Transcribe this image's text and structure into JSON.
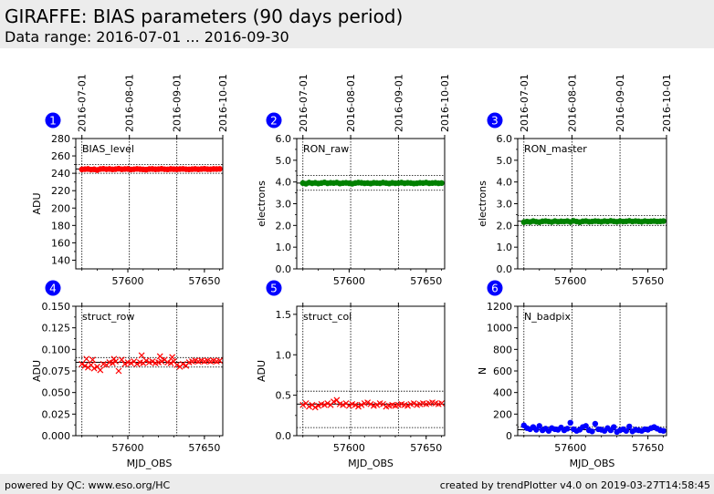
{
  "header": {
    "title": "GIRAFFE: BIAS parameters (90 days period)",
    "subtitle": "Data range: 2016-07-01 ... 2016-09-30"
  },
  "footer": {
    "left": "powered by QC: www.eso.org/HC",
    "right": "created by trendPlotter v4.0 on 2019-03-27T14:58:45"
  },
  "colors": {
    "header_bg": "#ececec",
    "badge": "#0000ff",
    "red": "#ff0000",
    "green": "#008000",
    "blue": "#0000ff"
  },
  "chart_data": [
    {
      "type": "scatter",
      "badge": "1",
      "label": "BIAS_level",
      "ylabel": "ADU",
      "xlabel": "",
      "xlim": [
        57566,
        57662
      ],
      "ylim": [
        130,
        280
      ],
      "yticks": [
        140,
        160,
        180,
        200,
        220,
        240,
        260,
        280
      ],
      "ytick_labels": [
        "140",
        "160",
        "180",
        "200",
        "220",
        "240",
        "260",
        "280"
      ],
      "xticks": [
        57600,
        57650
      ],
      "xtick_labels": [
        "57600",
        "57650"
      ],
      "top_ticks": [
        57570,
        57601,
        57632,
        57662
      ],
      "top_tick_labels": [
        "2016-07-01",
        "2016-08-01",
        "2016-09-01",
        "2016-10-01"
      ],
      "ref_line": 245,
      "ref_band": [
        240,
        250
      ],
      "marker": "o",
      "color": "#ff0000",
      "series": [
        {
          "x": [
            57570,
            57572,
            57574,
            57576,
            57578,
            57580,
            57582,
            57584,
            57586,
            57588,
            57590,
            57592,
            57594,
            57596,
            57598,
            57600,
            57602,
            57604,
            57606,
            57608,
            57610,
            57612,
            57614,
            57616,
            57618,
            57620,
            57622,
            57624,
            57626,
            57628,
            57630,
            57632,
            57634,
            57636,
            57638,
            57640,
            57642,
            57644,
            57646,
            57648,
            57650,
            57652,
            57654,
            57656,
            57658,
            57660
          ],
          "y": [
            244.5,
            244.8,
            245.0,
            244.3,
            244.6,
            243.8,
            244.9,
            245.2,
            244.7,
            245.0,
            244.5,
            244.8,
            245.3,
            244.6,
            244.9,
            245.0,
            244.4,
            244.7,
            245.1,
            244.8,
            244.5,
            244.2,
            244.9,
            245.0,
            244.6,
            244.8,
            245.2,
            244.7,
            244.5,
            245.0,
            244.8,
            244.6,
            244.9,
            245.1,
            244.7,
            244.5,
            244.8,
            245.0,
            244.6,
            244.9,
            245.2,
            244.8,
            244.7,
            245.0,
            244.9,
            245.1
          ]
        }
      ]
    },
    {
      "type": "scatter",
      "badge": "2",
      "label": "RON_raw",
      "ylabel": "electrons",
      "xlabel": "",
      "xlim": [
        57566,
        57662
      ],
      "ylim": [
        0,
        6
      ],
      "yticks": [
        0,
        1,
        2,
        3,
        4,
        5,
        6
      ],
      "ytick_labels": [
        "0.0",
        "1.0",
        "2.0",
        "3.0",
        "4.0",
        "5.0",
        "6.0"
      ],
      "xticks": [
        57600,
        57650
      ],
      "xtick_labels": [
        "57600",
        "57650"
      ],
      "top_ticks": [
        57570,
        57601,
        57632,
        57662
      ],
      "top_tick_labels": [
        "2016-07-01",
        "2016-08-01",
        "2016-09-01",
        "2016-10-01"
      ],
      "ref_line": 3.95,
      "ref_band": [
        3.62,
        4.3
      ],
      "marker": "o",
      "color": "#008000",
      "series": [
        {
          "x": [
            57570,
            57572,
            57574,
            57576,
            57578,
            57580,
            57582,
            57584,
            57586,
            57588,
            57590,
            57592,
            57594,
            57596,
            57598,
            57600,
            57602,
            57604,
            57606,
            57608,
            57610,
            57612,
            57614,
            57616,
            57618,
            57620,
            57622,
            57624,
            57626,
            57628,
            57630,
            57632,
            57634,
            57636,
            57638,
            57640,
            57642,
            57644,
            57646,
            57648,
            57650,
            57652,
            57654,
            57656,
            57658,
            57660
          ],
          "y": [
            3.95,
            3.92,
            3.97,
            3.94,
            3.96,
            3.93,
            3.95,
            3.98,
            3.94,
            3.96,
            3.95,
            3.97,
            3.93,
            3.95,
            3.96,
            3.94,
            3.92,
            3.95,
            3.97,
            3.96,
            3.94,
            3.95,
            3.93,
            3.96,
            3.95,
            3.94,
            3.97,
            3.95,
            3.93,
            3.96,
            3.94,
            3.95,
            3.97,
            3.94,
            3.96,
            3.95,
            3.93,
            3.94,
            3.96,
            3.95,
            3.97,
            3.94,
            3.95,
            3.96,
            3.94,
            3.95
          ]
        }
      ]
    },
    {
      "type": "scatter",
      "badge": "3",
      "label": "RON_master",
      "ylabel": "electrons",
      "xlabel": "",
      "xlim": [
        57566,
        57662
      ],
      "ylim": [
        0,
        6
      ],
      "yticks": [
        0,
        1,
        2,
        3,
        4,
        5,
        6
      ],
      "ytick_labels": [
        "0.0",
        "1.0",
        "2.0",
        "3.0",
        "4.0",
        "5.0",
        "6.0"
      ],
      "xticks": [
        57600,
        57650
      ],
      "xtick_labels": [
        "57600",
        "57650"
      ],
      "top_ticks": [
        57570,
        57601,
        57632,
        57662
      ],
      "top_tick_labels": [
        "2016-07-01",
        "2016-08-01",
        "2016-09-01",
        "2016-10-01"
      ],
      "ref_line": 2.2,
      "ref_band": [
        2.0,
        2.45
      ],
      "marker": "o",
      "color": "#008000",
      "series": [
        {
          "x": [
            57570,
            57572,
            57574,
            57576,
            57578,
            57580,
            57582,
            57584,
            57586,
            57588,
            57590,
            57592,
            57594,
            57596,
            57598,
            57600,
            57602,
            57604,
            57606,
            57608,
            57610,
            57612,
            57614,
            57616,
            57618,
            57620,
            57622,
            57624,
            57626,
            57628,
            57630,
            57632,
            57634,
            57636,
            57638,
            57640,
            57642,
            57644,
            57646,
            57648,
            57650,
            57652,
            57654,
            57656,
            57658,
            57660
          ],
          "y": [
            2.15,
            2.18,
            2.16,
            2.2,
            2.17,
            2.15,
            2.19,
            2.2,
            2.18,
            2.16,
            2.2,
            2.17,
            2.19,
            2.18,
            2.2,
            2.16,
            2.21,
            2.18,
            2.15,
            2.19,
            2.2,
            2.17,
            2.18,
            2.2,
            2.19,
            2.17,
            2.2,
            2.18,
            2.21,
            2.19,
            2.17,
            2.2,
            2.18,
            2.19,
            2.21,
            2.18,
            2.2,
            2.19,
            2.17,
            2.2,
            2.18,
            2.19,
            2.2,
            2.18,
            2.19,
            2.2
          ]
        }
      ]
    },
    {
      "type": "scatter",
      "badge": "4",
      "label": "struct_row",
      "ylabel": "ADU",
      "xlabel": "MJD_OBS",
      "xlim": [
        57566,
        57662
      ],
      "ylim": [
        0,
        0.15
      ],
      "yticks": [
        0,
        0.025,
        0.05,
        0.075,
        0.1,
        0.125,
        0.15
      ],
      "ytick_labels": [
        "0.000",
        "0.025",
        "0.050",
        "0.075",
        "0.100",
        "0.125",
        "0.150"
      ],
      "xticks": [
        57600,
        57650
      ],
      "xtick_labels": [
        "57600",
        "57650"
      ],
      "top_ticks": [
        57570,
        57601,
        57632,
        57662
      ],
      "top_tick_labels": [],
      "ref_line": 0.085,
      "ref_band": [
        0.0795,
        0.0905
      ],
      "marker": "x",
      "color": "#ff0000",
      "series": [
        {
          "x": [
            57570,
            57572,
            57574,
            57576,
            57578,
            57580,
            57582,
            57584,
            57586,
            57588,
            57590,
            57592,
            57594,
            57596,
            57598,
            57600,
            57602,
            57604,
            57606,
            57608,
            57610,
            57612,
            57614,
            57616,
            57618,
            57620,
            57622,
            57624,
            57626,
            57628,
            57630,
            57632,
            57634,
            57636,
            57638,
            57640,
            57642,
            57644,
            57646,
            57648,
            57650,
            57652,
            57654,
            57656,
            57658,
            57660,
            57573,
            57577,
            57591,
            57609,
            57621,
            57629
          ],
          "y": [
            0.083,
            0.081,
            0.079,
            0.082,
            0.078,
            0.08,
            0.076,
            0.083,
            0.082,
            0.085,
            0.084,
            0.086,
            0.075,
            0.088,
            0.083,
            0.085,
            0.084,
            0.086,
            0.083,
            0.085,
            0.084,
            0.087,
            0.085,
            0.086,
            0.084,
            0.085,
            0.086,
            0.088,
            0.085,
            0.084,
            0.086,
            0.082,
            0.08,
            0.083,
            0.081,
            0.085,
            0.086,
            0.087,
            0.086,
            0.087,
            0.086,
            0.087,
            0.086,
            0.087,
            0.086,
            0.087,
            0.089,
            0.088,
            0.089,
            0.093,
            0.092,
            0.091
          ]
        }
      ]
    },
    {
      "type": "scatter",
      "badge": "5",
      "label": "struct_col",
      "ylabel": "ADU",
      "xlabel": "MJD_OBS",
      "xlim": [
        57566,
        57662
      ],
      "ylim": [
        0,
        1.6
      ],
      "yticks": [
        0,
        0.5,
        1.0,
        1.5
      ],
      "ytick_labels": [
        "0.0",
        "0.5",
        "1.0",
        "1.5"
      ],
      "xticks": [
        57600,
        57650
      ],
      "xtick_labels": [
        "57600",
        "57650"
      ],
      "top_ticks": [
        57570,
        57601,
        57632,
        57662
      ],
      "top_tick_labels": [],
      "ref_line": 0.39,
      "ref_band": [
        0.1,
        0.55
      ],
      "marker": "x",
      "color": "#ff0000",
      "series": [
        {
          "x": [
            57570,
            57572,
            57574,
            57576,
            57578,
            57580,
            57582,
            57584,
            57586,
            57588,
            57590,
            57592,
            57594,
            57596,
            57598,
            57600,
            57602,
            57604,
            57606,
            57608,
            57610,
            57612,
            57614,
            57616,
            57618,
            57620,
            57622,
            57624,
            57626,
            57628,
            57630,
            57632,
            57634,
            57636,
            57638,
            57640,
            57642,
            57644,
            57646,
            57648,
            57650,
            57652,
            57654,
            57656,
            57658,
            57660
          ],
          "y": [
            0.38,
            0.4,
            0.36,
            0.38,
            0.35,
            0.37,
            0.39,
            0.38,
            0.4,
            0.38,
            0.42,
            0.44,
            0.39,
            0.38,
            0.4,
            0.37,
            0.39,
            0.38,
            0.36,
            0.38,
            0.4,
            0.41,
            0.39,
            0.37,
            0.38,
            0.4,
            0.39,
            0.36,
            0.37,
            0.38,
            0.37,
            0.38,
            0.39,
            0.38,
            0.37,
            0.39,
            0.4,
            0.38,
            0.39,
            0.4,
            0.39,
            0.4,
            0.41,
            0.4,
            0.39,
            0.4
          ]
        }
      ]
    },
    {
      "type": "scatter",
      "badge": "6",
      "label": "N_badpix",
      "ylabel": "N",
      "xlabel": "MJD_OBS",
      "xlim": [
        57566,
        57662
      ],
      "ylim": [
        0,
        1200
      ],
      "yticks": [
        0,
        200,
        400,
        600,
        800,
        1000,
        1200
      ],
      "ytick_labels": [
        "0",
        "200",
        "400",
        "600",
        "800",
        "1000",
        "1200"
      ],
      "xticks": [
        57600,
        57650
      ],
      "xtick_labels": [
        "57600",
        "57650"
      ],
      "top_ticks": [
        57570,
        57601,
        57632,
        57662
      ],
      "top_tick_labels": [],
      "ref_line": 55,
      "ref_band": [
        0,
        80
      ],
      "marker": "o",
      "color": "#0000ff",
      "series": [
        {
          "x": [
            57570,
            57572,
            57574,
            57576,
            57578,
            57580,
            57582,
            57584,
            57586,
            57588,
            57590,
            57592,
            57594,
            57596,
            57598,
            57600,
            57602,
            57604,
            57606,
            57608,
            57610,
            57612,
            57614,
            57616,
            57618,
            57620,
            57622,
            57624,
            57626,
            57628,
            57630,
            57632,
            57634,
            57636,
            57638,
            57640,
            57642,
            57644,
            57646,
            57648,
            57650,
            57652,
            57654,
            57656,
            57658,
            57660
          ],
          "y": [
            95,
            70,
            60,
            80,
            55,
            90,
            50,
            65,
            45,
            70,
            60,
            55,
            75,
            50,
            65,
            120,
            60,
            45,
            55,
            80,
            90,
            50,
            40,
            110,
            60,
            55,
            45,
            70,
            50,
            80,
            35,
            50,
            60,
            45,
            85,
            40,
            55,
            50,
            45,
            60,
            55,
            70,
            80,
            65,
            50,
            45
          ]
        }
      ]
    }
  ]
}
